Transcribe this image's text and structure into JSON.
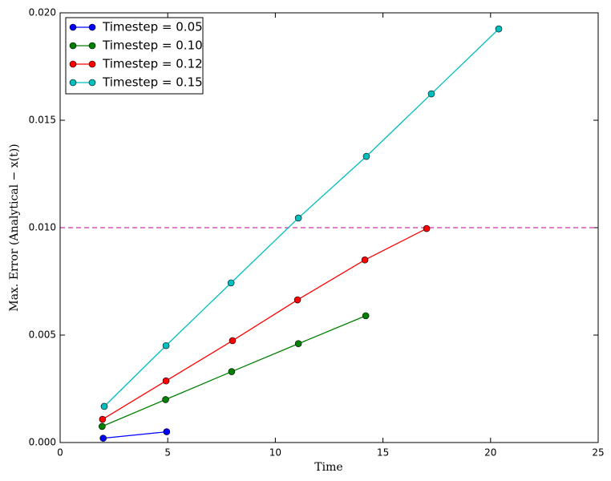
{
  "chart_data": {
    "type": "line",
    "xlabel": "Time",
    "ylabel": "Max. Error (Analytical − x(t))",
    "xlim": [
      0,
      25
    ],
    "ylim": [
      0,
      0.02
    ],
    "xticks": [
      0,
      5,
      10,
      15,
      20,
      25
    ],
    "yticks": [
      {
        "value": 0,
        "label": "0.000"
      },
      0.005,
      {
        "value": 0.01,
        "label": "0.010"
      },
      0.015,
      {
        "value": 0.02,
        "label": "0.020"
      }
    ],
    "legend": "upper left",
    "hline": {
      "value": 0.01,
      "color": "#cc33aa"
    },
    "series": [
      {
        "name": "Timestep = 0.05",
        "color": "#0000ff",
        "x": [
          2.0,
          4.95
        ],
        "values": [
          0.0002,
          0.0005
        ]
      },
      {
        "name": "Timestep = 0.10",
        "color": "#008000",
        "x": [
          1.95,
          4.9,
          7.97,
          11.07,
          14.2
        ],
        "values": [
          0.00075,
          0.002,
          0.0033,
          0.0046,
          0.0059
        ]
      },
      {
        "name": "Timestep = 0.12",
        "color": "#ff0000",
        "x": [
          1.97,
          4.92,
          8.01,
          11.03,
          14.16,
          17.03
        ],
        "values": [
          0.00108,
          0.00287,
          0.00474,
          0.00664,
          0.0085,
          0.00996
        ]
      },
      {
        "name": "Timestep = 0.15",
        "color": "#00bfbf",
        "x": [
          2.05,
          4.92,
          7.94,
          11.07,
          14.23,
          17.25,
          20.38
        ],
        "values": [
          0.00168,
          0.00451,
          0.00743,
          0.01045,
          0.01332,
          0.01623,
          0.01925
        ]
      }
    ]
  }
}
